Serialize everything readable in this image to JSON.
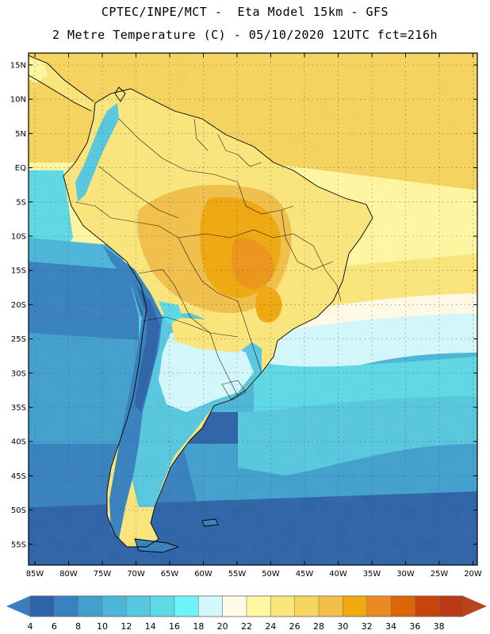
{
  "header": {
    "line1": "CPTEC/INPE/MCT -  Eta Model 15km - GFS",
    "line2": "2 Metre Temperature (C) - 05/10/2020 12UTC fct=216h"
  },
  "axes": {
    "lat_labels": [
      "15N",
      "10N",
      "5N",
      "EQ",
      "5S",
      "10S",
      "15S",
      "20S",
      "25S",
      "30S",
      "35S",
      "40S",
      "45S",
      "50S",
      "55S"
    ],
    "lon_labels": [
      "85W",
      "80W",
      "75W",
      "70W",
      "65W",
      "60W",
      "55W",
      "50W",
      "45W",
      "40W",
      "35W",
      "30W",
      "25W",
      "20W"
    ]
  },
  "colorbar": {
    "levels": [
      "4",
      "6",
      "8",
      "10",
      "12",
      "14",
      "16",
      "18",
      "20",
      "22",
      "24",
      "26",
      "28",
      "30",
      "32",
      "34",
      "36",
      "38"
    ],
    "colors": [
      "#2e64a9",
      "#3782bf",
      "#42a0cd",
      "#4cb6d8",
      "#57c8df",
      "#5ed9e6",
      "#6ff3fb",
      "#d3f8fb",
      "#fffbe6",
      "#fff7a1",
      "#fbe67b",
      "#f7d45e",
      "#f2c04a",
      "#f0a90f",
      "#eb8a21",
      "#dd6708",
      "#c8450a",
      "#b93a14"
    ],
    "low_color": "#3a7dc1",
    "high_color": "#b9431c"
  }
}
